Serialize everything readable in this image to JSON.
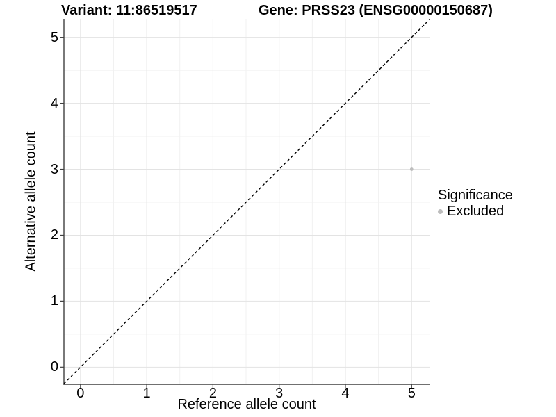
{
  "chart_data": {
    "type": "scatter",
    "title_left": "Variant: 11:86519517",
    "title_right": "Gene: PRSS23 (ENSG00000150687)",
    "xlabel": "Reference allele count",
    "ylabel": "Alternative allele count",
    "x_ticks": [
      "0",
      "1",
      "2",
      "3",
      "4",
      "5"
    ],
    "y_ticks": [
      "0",
      "1",
      "2",
      "3",
      "4",
      "5"
    ],
    "x_tick_values": [
      0,
      1,
      2,
      3,
      4,
      5
    ],
    "y_tick_values": [
      0,
      1,
      2,
      3,
      4,
      5
    ],
    "xlim": [
      -0.25,
      5.27
    ],
    "ylim": [
      -0.26,
      5.27
    ],
    "grid": "major+minor on, white background",
    "points": [
      {
        "x": 5,
        "y": 3,
        "significance": "Excluded",
        "color": "#bdbdbd"
      }
    ],
    "reference_line": {
      "kind": "identity y=x",
      "style": "dashed",
      "color": "#000000"
    },
    "legend": {
      "title": "Significance",
      "position": "right",
      "entries": [
        {
          "label": "Excluded",
          "color": "#bdbdbd",
          "marker": "circle"
        }
      ]
    },
    "colors": {
      "background": "#ffffff",
      "grid_major": "#e3e3e3",
      "grid_minor": "#f1f1f1",
      "axis_line": "#404040",
      "tick_mark": "#404040",
      "point": "#bdbdbd",
      "text": "#000000"
    }
  }
}
